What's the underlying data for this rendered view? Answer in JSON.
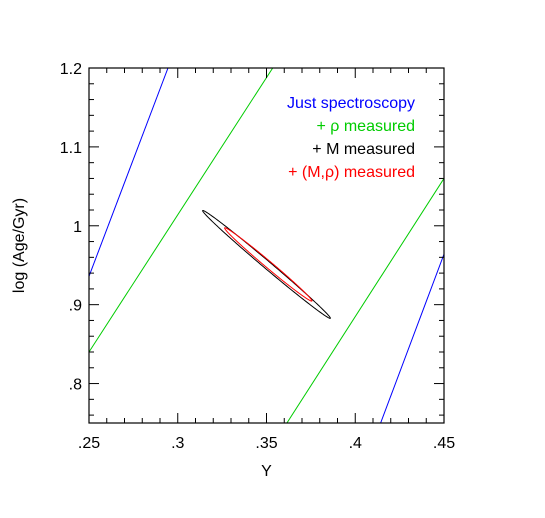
{
  "chart_data": {
    "type": "line",
    "xlabel": "Y",
    "ylabel": "log (Age/Gyr)",
    "xlim": [
      0.25,
      0.45
    ],
    "ylim": [
      0.75,
      1.2
    ],
    "x_ticks": [
      0.25,
      0.3,
      0.35,
      0.4,
      0.45
    ],
    "x_tick_labels": [
      ".25",
      ".3",
      ".35",
      ".4",
      ".45"
    ],
    "y_ticks": [
      0.8,
      0.9,
      1.0,
      1.1,
      1.2
    ],
    "y_tick_labels": [
      ".8",
      ".9",
      "1",
      "1.1",
      "1.2"
    ],
    "grid": false,
    "legend_position": "top-right",
    "series": [
      {
        "name": "Just spectroscopy",
        "color": "#0000ff",
        "shape": "parallel-lines",
        "lines": [
          {
            "x": [
              0.25,
              0.2945
            ],
            "y": [
              0.936,
              1.2
            ]
          },
          {
            "x": [
              0.4143,
              0.45
            ],
            "y": [
              0.75,
              0.964
            ]
          }
        ]
      },
      {
        "name": "+ ρ measured",
        "color": "#00cc00",
        "shape": "parallel-lines",
        "lines": [
          {
            "x": [
              0.25,
              0.3535
            ],
            "y": [
              0.84,
              1.2
            ]
          },
          {
            "x": [
              0.3615,
              0.45
            ],
            "y": [
              0.75,
              1.06
            ]
          }
        ]
      },
      {
        "name": "+ M measured",
        "color": "#000000",
        "shape": "ellipse",
        "center": [
          0.35,
          0.951
        ],
        "semi_axes": [
          0.0772,
          0.0029
        ],
        "angle_deg": -62.3
      },
      {
        "name": "+ (M,ρ) measured",
        "color": "#ff0000",
        "shape": "ellipse",
        "center": [
          0.351,
          0.951
        ],
        "semi_axes": [
          0.0525,
          0.00262
        ],
        "angle_deg": -62.2
      }
    ]
  }
}
